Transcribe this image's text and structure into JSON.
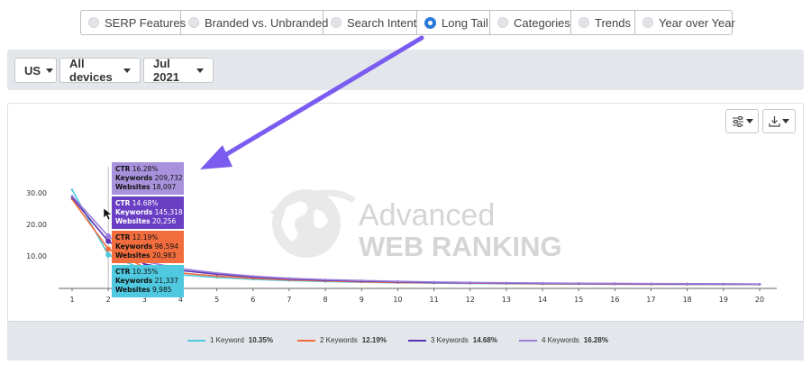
{
  "tabs": [
    {
      "label": "SERP Features",
      "checked": false
    },
    {
      "label": "Branded vs. Unbranded",
      "checked": false
    },
    {
      "label": "Search Intent",
      "checked": false
    },
    {
      "label": "Long Tail",
      "checked": true
    },
    {
      "label": "Categories",
      "checked": false
    },
    {
      "label": "Trends",
      "checked": false
    },
    {
      "label": "Year over Year",
      "checked": false
    }
  ],
  "filters": {
    "country": "US",
    "device": "All devices",
    "month": "Jul 2021"
  },
  "watermark": {
    "line1": "Advanced",
    "line2": "WEB RANKING"
  },
  "colors": {
    "accent": "#2a7ad8",
    "arrow": "#7b5cf0",
    "s1": "#4fc9e0",
    "s2": "#f26d3d",
    "s3": "#5a33b5",
    "s4": "#9a7ddb"
  },
  "tooltips": [
    {
      "ctr_label": "CTR",
      "ctr": "16.28%",
      "kw_label": "Keywords",
      "kw": "209,732",
      "ws_label": "Websites",
      "ws": "18,097",
      "color": "#a892dc"
    },
    {
      "ctr_label": "CTR",
      "ctr": "14.68%",
      "kw_label": "Keywords",
      "kw": "145,318",
      "ws_label": "Websites",
      "ws": "20,256",
      "color": "#6a3fc4"
    },
    {
      "ctr_label": "CTR",
      "ctr": "12.19%",
      "kw_label": "Keywords",
      "kw": "96,594",
      "ws_label": "Websites",
      "ws": "20,983",
      "color": "#f26d3d"
    },
    {
      "ctr_label": "CTR",
      "ctr": "10.35%",
      "kw_label": "Keywords",
      "kw": "21,337",
      "ws_label": "Websites",
      "ws": "9,985",
      "color": "#4fc9e0"
    }
  ],
  "legend": [
    {
      "name": "1 Keyword",
      "value": "10.35%",
      "color": "#4fc9e0"
    },
    {
      "name": "2 Keywords",
      "value": "12.19%",
      "color": "#f26d3d"
    },
    {
      "name": "3 Keywords",
      "value": "14.68%",
      "color": "#5a33b5"
    },
    {
      "name": "4 Keywords",
      "value": "16.28%",
      "color": "#9a7ddb"
    }
  ],
  "chart_data": {
    "type": "line",
    "x": [
      1,
      2,
      3,
      4,
      5,
      6,
      7,
      8,
      9,
      10,
      11,
      12,
      13,
      14,
      15,
      16,
      17,
      18,
      19,
      20
    ],
    "ylim": [
      0,
      30
    ],
    "yticks": [
      "10.00",
      "20.00",
      "30.00"
    ],
    "ytick_values": [
      10,
      20,
      30
    ],
    "series": [
      {
        "name": "1 Keyword",
        "color": "#4fc9e0",
        "values": [
          31,
          10.35,
          5.6,
          4.0,
          3.2,
          2.6,
          2.2,
          1.9,
          1.7,
          1.5,
          1.4,
          1.3,
          1.2,
          1.15,
          1.1,
          1.05,
          1.0,
          1.0,
          0.95,
          0.95
        ]
      },
      {
        "name": "2 Keywords",
        "color": "#f26d3d",
        "values": [
          28,
          12.19,
          6.4,
          4.6,
          3.6,
          2.9,
          2.4,
          2.1,
          1.8,
          1.6,
          1.5,
          1.4,
          1.3,
          1.2,
          1.15,
          1.1,
          1.05,
          1.0,
          1.0,
          1.0
        ]
      },
      {
        "name": "3 Keywords",
        "color": "#5a33b5",
        "values": [
          28.5,
          14.68,
          7.4,
          5.4,
          4.2,
          3.3,
          2.7,
          2.3,
          2.0,
          1.8,
          1.6,
          1.5,
          1.4,
          1.3,
          1.25,
          1.2,
          1.15,
          1.1,
          1.1,
          1.05
        ]
      },
      {
        "name": "4 Keywords",
        "color": "#9a7ddb",
        "values": [
          29,
          16.28,
          8.2,
          6.0,
          4.6,
          3.6,
          2.9,
          2.5,
          2.2,
          1.95,
          1.75,
          1.6,
          1.5,
          1.4,
          1.35,
          1.3,
          1.25,
          1.2,
          1.15,
          1.1
        ]
      }
    ]
  }
}
